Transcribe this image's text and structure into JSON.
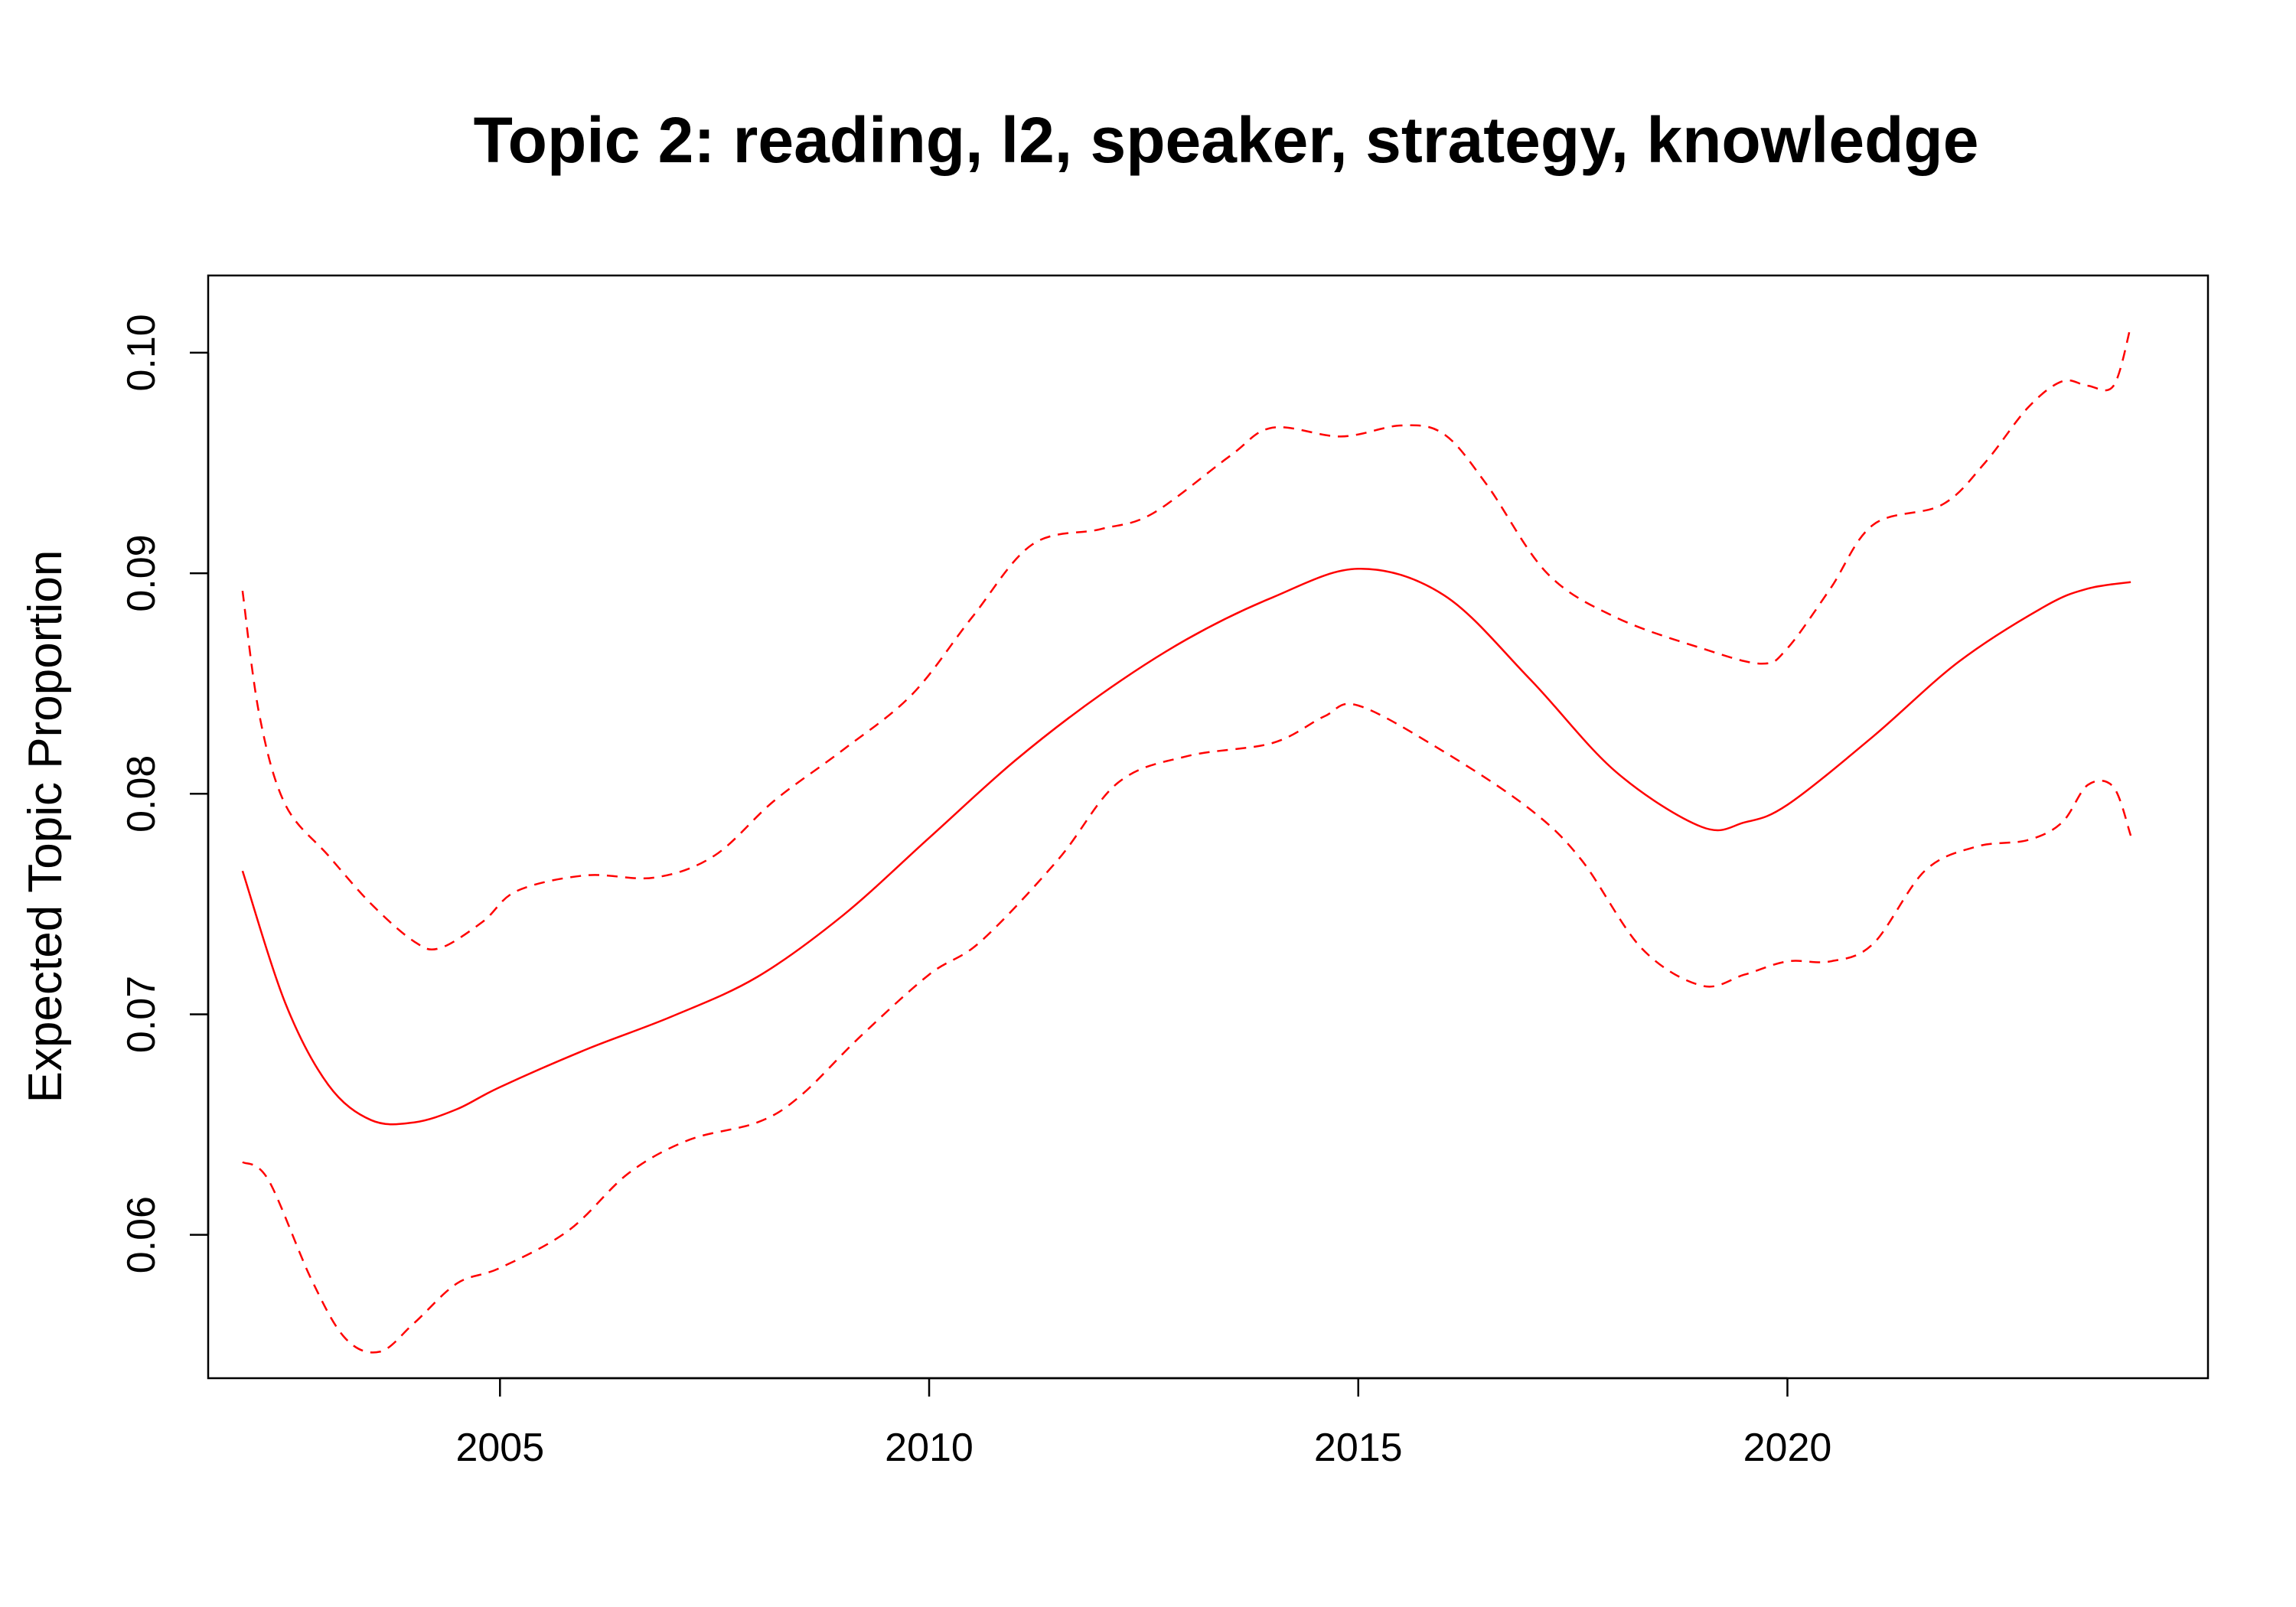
{
  "chart_data": {
    "type": "line",
    "title": "Topic 2: reading, l2, speaker, strategy, knowledge",
    "xlabel": "",
    "ylabel": "Expected Topic Proportion",
    "xlim": [
      2001.6,
      2024.9
    ],
    "ylim": [
      0.0535,
      0.1035
    ],
    "x_ticks": [
      2005,
      2010,
      2015,
      2020
    ],
    "x_tick_labels": [
      "2005",
      "2010",
      "2015",
      "2020"
    ],
    "y_ticks": [
      0.06,
      0.07,
      0.08,
      0.09,
      0.1
    ],
    "y_tick_labels": [
      "0.06",
      "0.07",
      "0.08",
      "0.09",
      "0.10"
    ],
    "color": "#ff0000",
    "grid": false,
    "series": [
      {
        "style": "solid",
        "x": [
          2002,
          2002.5,
          2003,
          2003.5,
          2004,
          2004.5,
          2005,
          2006,
          2007,
          2008,
          2009,
          2010,
          2011,
          2012,
          2013,
          2014,
          2015,
          2016,
          2017,
          2018,
          2019,
          2019.5,
          2020,
          2021,
          2022,
          2023,
          2023.5,
          2024
        ],
        "y": [
          0.0765,
          0.0705,
          0.0668,
          0.0652,
          0.0651,
          0.0657,
          0.0667,
          0.0684,
          0.0699,
          0.0717,
          0.0745,
          0.078,
          0.0815,
          0.0845,
          0.087,
          0.0889,
          0.0902,
          0.089,
          0.0852,
          0.081,
          0.0785,
          0.0787,
          0.0795,
          0.0826,
          0.086,
          0.0885,
          0.0893,
          0.0896
        ]
      },
      {
        "style": "dashed",
        "x": [
          2002,
          2002.2,
          2002.5,
          2003,
          2003.5,
          2004,
          2004.3,
          2004.8,
          2005.2,
          2006,
          2006.8,
          2007.5,
          2008.2,
          2009,
          2009.8,
          2010.5,
          2011.2,
          2012,
          2012.6,
          2013.5,
          2014,
          2014.8,
          2015.5,
          2016,
          2016.5,
          2017.2,
          2018,
          2019,
          2019.7,
          2020,
          2020.5,
          2021,
          2021.8,
          2022.3,
          2022.8,
          2023.2,
          2023.5,
          2023.8,
          2024
        ],
        "y": [
          0.0892,
          0.0835,
          0.0795,
          0.0772,
          0.075,
          0.0733,
          0.073,
          0.0742,
          0.0756,
          0.0763,
          0.0762,
          0.0772,
          0.0797,
          0.082,
          0.0845,
          0.088,
          0.0913,
          0.092,
          0.0927,
          0.0953,
          0.0966,
          0.0962,
          0.0967,
          0.0963,
          0.094,
          0.09,
          0.088,
          0.0866,
          0.0859,
          0.0866,
          0.0893,
          0.0922,
          0.0931,
          0.095,
          0.0975,
          0.0987,
          0.0985,
          0.0985,
          0.1012
        ]
      },
      {
        "style": "dashed",
        "x": [
          2002,
          2002.3,
          2002.8,
          2003.2,
          2003.6,
          2004,
          2004.5,
          2005,
          2005.8,
          2006.5,
          2007.2,
          2008,
          2008.5,
          2009.2,
          2010,
          2010.6,
          2011.5,
          2012.2,
          2013,
          2014,
          2014.6,
          2015,
          2016,
          2017,
          2017.6,
          2018.3,
          2019,
          2019.5,
          2020,
          2020.5,
          2021,
          2021.6,
          2022.2,
          2022.8,
          2023.2,
          2023.5,
          2023.8,
          2024
        ],
        "y": [
          0.0633,
          0.0625,
          0.058,
          0.0553,
          0.0547,
          0.056,
          0.0578,
          0.0585,
          0.0602,
          0.0628,
          0.0643,
          0.0651,
          0.0663,
          0.069,
          0.0718,
          0.0733,
          0.077,
          0.0805,
          0.0817,
          0.0823,
          0.0835,
          0.084,
          0.0819,
          0.0793,
          0.077,
          0.073,
          0.0713,
          0.0718,
          0.0724,
          0.0724,
          0.0732,
          0.0765,
          0.0776,
          0.0779,
          0.0787,
          0.0804,
          0.0803,
          0.0781
        ]
      }
    ]
  }
}
